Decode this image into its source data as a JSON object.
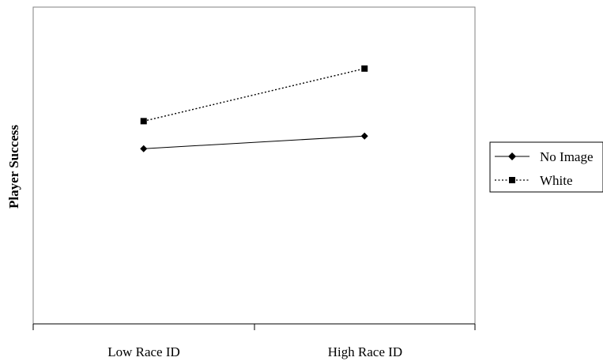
{
  "chart_data": {
    "type": "line",
    "title": "",
    "xlabel": "",
    "ylabel": "Player Success",
    "categories": [
      "Low Race ID",
      "High Race ID"
    ],
    "ylim": [
      0,
      1
    ],
    "grid": false,
    "legend_position": "right",
    "series": [
      {
        "name": "No Image",
        "values": [
          0.553,
          0.593
        ],
        "marker": "diamond",
        "line_style": "solid",
        "color": "#000000"
      },
      {
        "name": "White",
        "values": [
          0.64,
          0.806
        ],
        "marker": "square",
        "line_style": "dotted",
        "color": "#000000"
      }
    ]
  }
}
